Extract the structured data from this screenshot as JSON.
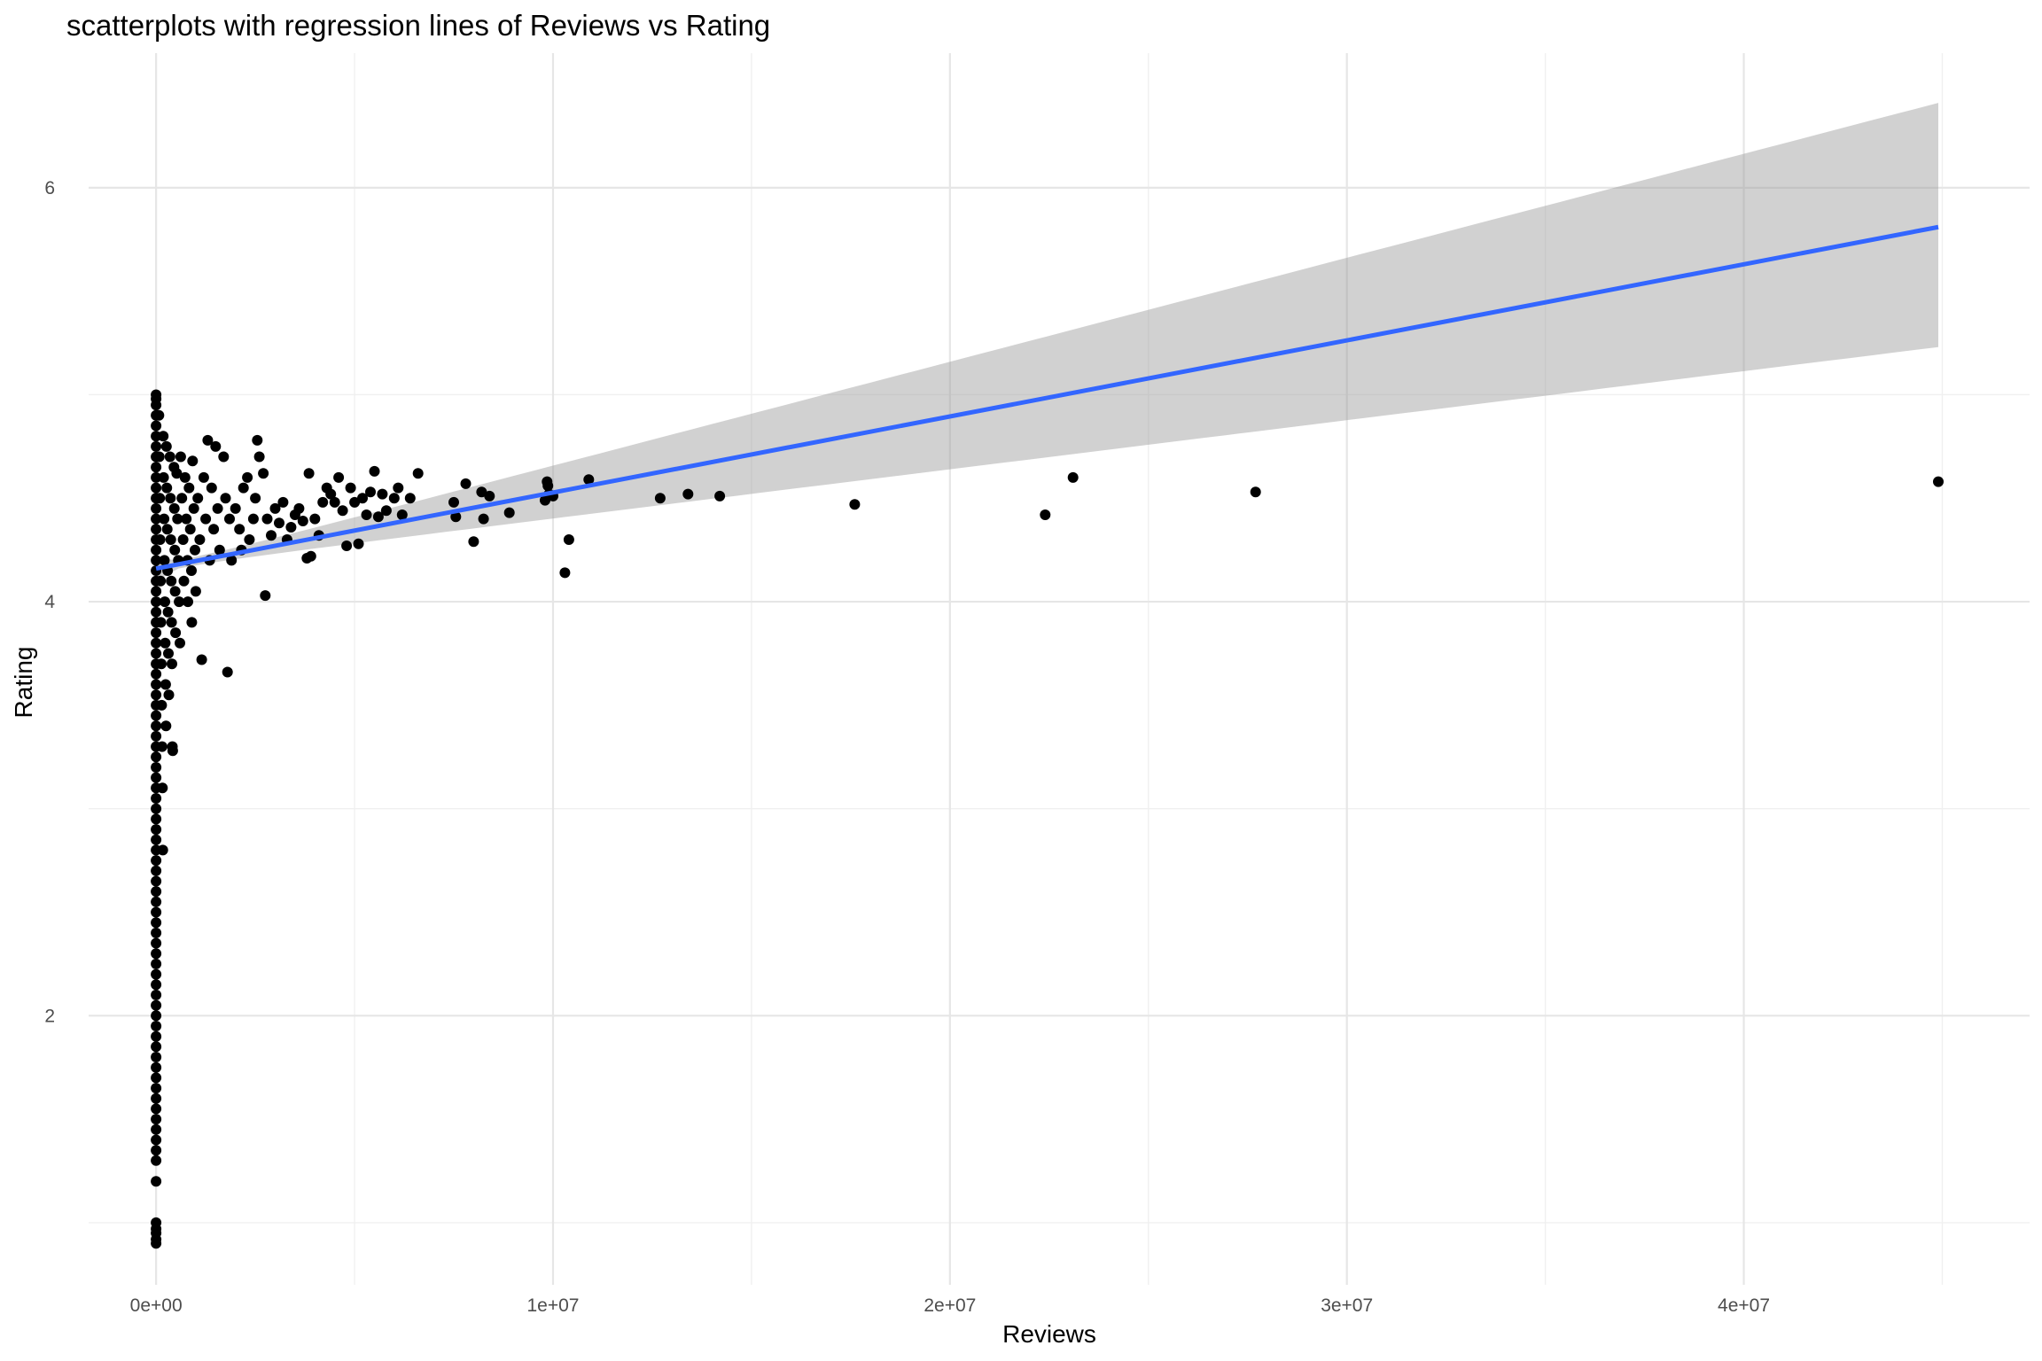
{
  "chart_data": {
    "type": "scatter",
    "title": "scatterplots with regression lines of Reviews vs Rating",
    "xlabel": "Reviews",
    "ylabel": "Rating",
    "xlim": [
      -1700000,
      47200000
    ],
    "ylim": [
      0.7,
      6.65
    ],
    "x_ticks": [
      {
        "value": 0,
        "label": "0e+00"
      },
      {
        "value": 10000000,
        "label": "1e+07"
      },
      {
        "value": 20000000,
        "label": "2e+07"
      },
      {
        "value": 30000000,
        "label": "3e+07"
      },
      {
        "value": 40000000,
        "label": "4e+07"
      }
    ],
    "y_ticks": [
      {
        "value": 2,
        "label": "2"
      },
      {
        "value": 4,
        "label": "4"
      },
      {
        "value": 6,
        "label": "6"
      }
    ],
    "grid": true,
    "legend": "none",
    "colors": {
      "points": "#000000",
      "regression_line": "#3366ff",
      "confidence_band": "#999999"
    },
    "series": [
      {
        "type": "scatter",
        "points": [
          [
            0,
            5.0
          ],
          [
            0,
            4.98
          ],
          [
            0,
            4.95
          ],
          [
            0,
            4.9
          ],
          [
            0,
            4.85
          ],
          [
            0,
            4.8
          ],
          [
            0,
            4.75
          ],
          [
            0,
            4.7
          ],
          [
            0,
            4.65
          ],
          [
            0,
            4.6
          ],
          [
            0,
            4.55
          ],
          [
            0,
            4.5
          ],
          [
            0,
            4.45
          ],
          [
            0,
            4.4
          ],
          [
            0,
            4.35
          ],
          [
            0,
            4.3
          ],
          [
            0,
            4.25
          ],
          [
            0,
            4.2
          ],
          [
            0,
            4.15
          ],
          [
            0,
            4.1
          ],
          [
            0,
            4.05
          ],
          [
            0,
            4.0
          ],
          [
            0,
            3.95
          ],
          [
            0,
            3.9
          ],
          [
            0,
            3.85
          ],
          [
            0,
            3.8
          ],
          [
            0,
            3.75
          ],
          [
            0,
            3.7
          ],
          [
            0,
            3.65
          ],
          [
            0,
            3.6
          ],
          [
            0,
            3.55
          ],
          [
            0,
            3.5
          ],
          [
            0,
            3.45
          ],
          [
            0,
            3.4
          ],
          [
            0,
            3.35
          ],
          [
            0,
            3.3
          ],
          [
            0,
            3.25
          ],
          [
            0,
            3.2
          ],
          [
            0,
            3.15
          ],
          [
            0,
            3.1
          ],
          [
            0,
            3.05
          ],
          [
            0,
            3.0
          ],
          [
            0,
            2.95
          ],
          [
            0,
            2.9
          ],
          [
            0,
            2.85
          ],
          [
            0,
            2.8
          ],
          [
            0,
            2.75
          ],
          [
            0,
            2.7
          ],
          [
            0,
            2.65
          ],
          [
            0,
            2.6
          ],
          [
            0,
            2.55
          ],
          [
            0,
            2.5
          ],
          [
            0,
            2.45
          ],
          [
            0,
            2.4
          ],
          [
            0,
            2.35
          ],
          [
            0,
            2.3
          ],
          [
            0,
            2.25
          ],
          [
            0,
            2.2
          ],
          [
            0,
            2.15
          ],
          [
            0,
            2.1
          ],
          [
            0,
            2.05
          ],
          [
            0,
            2.0
          ],
          [
            0,
            1.95
          ],
          [
            0,
            1.9
          ],
          [
            0,
            1.85
          ],
          [
            0,
            1.8
          ],
          [
            0,
            1.75
          ],
          [
            0,
            1.7
          ],
          [
            0,
            1.65
          ],
          [
            0,
            1.6
          ],
          [
            0,
            1.55
          ],
          [
            0,
            1.5
          ],
          [
            0,
            1.45
          ],
          [
            0,
            1.4
          ],
          [
            0,
            1.35
          ],
          [
            0,
            1.3
          ],
          [
            0,
            1.2
          ],
          [
            0,
            1.0
          ],
          [
            0,
            0.97
          ],
          [
            0,
            0.95
          ],
          [
            0,
            0.92
          ],
          [
            0,
            0.9
          ],
          [
            70000,
            4.9
          ],
          [
            80000,
            4.7
          ],
          [
            90000,
            4.5
          ],
          [
            100000,
            4.3
          ],
          [
            110000,
            4.1
          ],
          [
            120000,
            3.9
          ],
          [
            130000,
            3.7
          ],
          [
            140000,
            3.5
          ],
          [
            150000,
            3.3
          ],
          [
            160000,
            3.1
          ],
          [
            170000,
            2.8
          ],
          [
            180000,
            4.8
          ],
          [
            190000,
            4.6
          ],
          [
            200000,
            4.4
          ],
          [
            210000,
            4.2
          ],
          [
            220000,
            4.0
          ],
          [
            230000,
            3.8
          ],
          [
            240000,
            3.6
          ],
          [
            250000,
            3.4
          ],
          [
            260000,
            4.75
          ],
          [
            270000,
            4.55
          ],
          [
            280000,
            4.35
          ],
          [
            290000,
            4.15
          ],
          [
            300000,
            3.95
          ],
          [
            310000,
            3.75
          ],
          [
            320000,
            3.55
          ],
          [
            350000,
            4.7
          ],
          [
            360000,
            4.5
          ],
          [
            370000,
            4.3
          ],
          [
            380000,
            4.1
          ],
          [
            390000,
            3.9
          ],
          [
            400000,
            3.7
          ],
          [
            410000,
            3.3
          ],
          [
            420000,
            3.28
          ],
          [
            450000,
            4.65
          ],
          [
            460000,
            4.45
          ],
          [
            470000,
            4.25
          ],
          [
            480000,
            4.05
          ],
          [
            490000,
            3.85
          ],
          [
            520000,
            4.62
          ],
          [
            540000,
            4.4
          ],
          [
            560000,
            4.2
          ],
          [
            580000,
            4.0
          ],
          [
            600000,
            3.8
          ],
          [
            620000,
            4.7
          ],
          [
            650000,
            4.5
          ],
          [
            680000,
            4.3
          ],
          [
            700000,
            4.1
          ],
          [
            730000,
            4.6
          ],
          [
            760000,
            4.4
          ],
          [
            790000,
            4.2
          ],
          [
            800000,
            4.0
          ],
          [
            830000,
            4.55
          ],
          [
            860000,
            4.35
          ],
          [
            890000,
            4.15
          ],
          [
            900000,
            3.9
          ],
          [
            920000,
            4.68
          ],
          [
            950000,
            4.45
          ],
          [
            980000,
            4.25
          ],
          [
            1000000,
            4.05
          ],
          [
            1050000,
            4.5
          ],
          [
            1100000,
            4.3
          ],
          [
            1150000,
            3.72
          ],
          [
            1200000,
            4.6
          ],
          [
            1250000,
            4.4
          ],
          [
            1300000,
            4.78
          ],
          [
            1350000,
            4.2
          ],
          [
            1400000,
            4.55
          ],
          [
            1450000,
            4.35
          ],
          [
            1500000,
            4.75
          ],
          [
            1550000,
            4.45
          ],
          [
            1600000,
            4.25
          ],
          [
            1700000,
            4.7
          ],
          [
            1750000,
            4.5
          ],
          [
            1800000,
            3.66
          ],
          [
            1850000,
            4.4
          ],
          [
            1900000,
            4.2
          ],
          [
            2000000,
            4.45
          ],
          [
            2100000,
            4.35
          ],
          [
            2150000,
            4.25
          ],
          [
            2200000,
            4.55
          ],
          [
            2300000,
            4.6
          ],
          [
            2350000,
            4.3
          ],
          [
            2450000,
            4.4
          ],
          [
            2500000,
            4.5
          ],
          [
            2550000,
            4.78
          ],
          [
            2600000,
            4.7
          ],
          [
            2700000,
            4.62
          ],
          [
            2750000,
            4.03
          ],
          [
            2800000,
            4.4
          ],
          [
            2900000,
            4.32
          ],
          [
            3000000,
            4.45
          ],
          [
            3100000,
            4.38
          ],
          [
            3200000,
            4.48
          ],
          [
            3300000,
            4.3
          ],
          [
            3400000,
            4.36
          ],
          [
            3500000,
            4.42
          ],
          [
            3600000,
            4.45
          ],
          [
            3700000,
            4.39
          ],
          [
            3800000,
            4.21
          ],
          [
            3850000,
            4.62
          ],
          [
            3900000,
            4.22
          ],
          [
            4000000,
            4.4
          ],
          [
            4100000,
            4.32
          ],
          [
            4200000,
            4.48
          ],
          [
            4300000,
            4.55
          ],
          [
            4400000,
            4.52
          ],
          [
            4500000,
            4.48
          ],
          [
            4600000,
            4.6
          ],
          [
            4700000,
            4.44
          ],
          [
            4800000,
            4.27
          ],
          [
            4900000,
            4.55
          ],
          [
            5000000,
            4.48
          ],
          [
            5100000,
            4.28
          ],
          [
            5200000,
            4.5
          ],
          [
            5300000,
            4.42
          ],
          [
            5400000,
            4.53
          ],
          [
            5500000,
            4.63
          ],
          [
            5600000,
            4.41
          ],
          [
            5700000,
            4.52
          ],
          [
            5800000,
            4.44
          ],
          [
            6000000,
            4.5
          ],
          [
            6100000,
            4.55
          ],
          [
            6200000,
            4.42
          ],
          [
            6400000,
            4.5
          ],
          [
            6600000,
            4.62
          ],
          [
            7500000,
            4.48
          ],
          [
            7550000,
            4.41
          ],
          [
            7800000,
            4.57
          ],
          [
            8000000,
            4.29
          ],
          [
            8200000,
            4.53
          ],
          [
            8250000,
            4.4
          ],
          [
            8400000,
            4.51
          ],
          [
            8900000,
            4.43
          ],
          [
            9800000,
            4.49
          ],
          [
            9850000,
            4.58
          ],
          [
            9870000,
            4.56
          ],
          [
            9900000,
            4.52
          ],
          [
            10000000,
            4.51
          ],
          [
            10300000,
            4.14
          ],
          [
            10400000,
            4.3
          ],
          [
            10900000,
            4.59
          ],
          [
            12700000,
            4.5
          ],
          [
            13400000,
            4.52
          ],
          [
            14200000,
            4.51
          ],
          [
            17600000,
            4.47
          ],
          [
            22400000,
            4.42
          ],
          [
            23100000,
            4.6
          ],
          [
            27700000,
            4.53
          ],
          [
            44900000,
            4.58
          ]
        ]
      },
      {
        "type": "regression",
        "x": [
          0,
          44900000
        ],
        "y": [
          4.16,
          5.81
        ],
        "ci_lower": [
          4.1,
          5.23
        ],
        "ci_upper": [
          4.21,
          6.41
        ]
      }
    ]
  }
}
